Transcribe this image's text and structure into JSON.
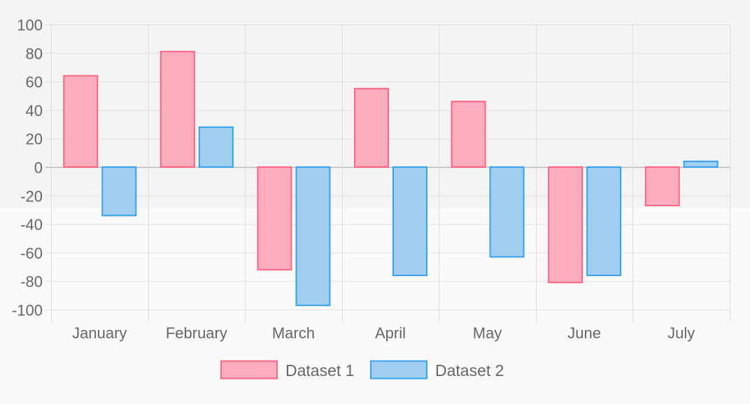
{
  "chart_data": {
    "type": "bar",
    "categories": [
      "January",
      "February",
      "March",
      "April",
      "May",
      "June",
      "July"
    ],
    "series": [
      {
        "name": "Dataset 1",
        "values": [
          64,
          81,
          -72,
          55,
          46,
          -81,
          -27
        ],
        "fill": "#fbadbd",
        "stroke": "#ff6384"
      },
      {
        "name": "Dataset 2",
        "values": [
          -34,
          28,
          -97,
          -76,
          -63,
          -76,
          4
        ],
        "fill": "#9fcef1",
        "stroke": "#36a2eb"
      }
    ],
    "ylim": [
      -100,
      100
    ],
    "yticks": [
      "100",
      "80",
      "60",
      "40",
      "20",
      "0",
      "-20",
      "-40",
      "-60",
      "-80",
      "-100"
    ],
    "grid": true,
    "legend_position": "bottom",
    "title": "",
    "xlabel": "",
    "ylabel": ""
  },
  "colors": {
    "grid": "#dddddd",
    "zero_line": "#b8b8b8",
    "text": "#666666"
  }
}
